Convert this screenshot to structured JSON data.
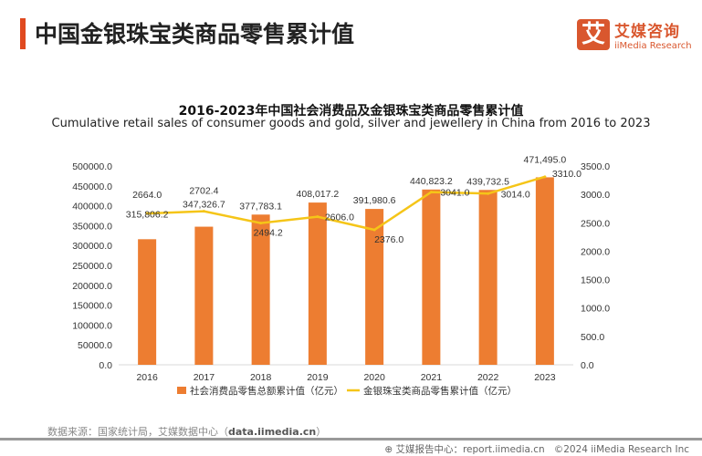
{
  "header": {
    "title": "中国金银珠宝类商品零售累计值",
    "logo_icon": "艾",
    "logo_cn": "艾媒咨询",
    "logo_en": "iiMedia Research"
  },
  "chart_data": {
    "type": "bar+line",
    "title": "2016-2023年中国社会消费品及金银珠宝类商品零售累计值",
    "subtitle": "Cumulative retail sales of consumer goods and gold, silver and jewellery in China from 2016 to 2023",
    "categories": [
      "2016",
      "2017",
      "2018",
      "2019",
      "2020",
      "2021",
      "2022",
      "2023"
    ],
    "series": [
      {
        "name": "社会消费品零售总额累计值（亿元）",
        "type": "bar",
        "axis": "left",
        "color": "#ed7d31",
        "values": [
          315806.2,
          347326.7,
          377783.1,
          408017.2,
          391980.6,
          440823.2,
          439732.5,
          471495.0
        ],
        "labels": [
          "315,806.2",
          "347,326.7",
          "377,783.1",
          "408,017.2",
          "391,980.6",
          "440,823.2",
          "439,732.5",
          "471,495.0"
        ]
      },
      {
        "name": "金银珠宝类商品零售累计值（亿元）",
        "type": "line",
        "axis": "right",
        "color": "#f5c518",
        "values": [
          2664.0,
          2702.4,
          2494.2,
          2606.0,
          2376.0,
          3041.0,
          3014.0,
          3310.0
        ],
        "labels": [
          "2664.0",
          "2702.4",
          "2494.2",
          "2606.0",
          "2376.0",
          "3041.0",
          "3014.0",
          "3310.0"
        ]
      }
    ],
    "y_left": {
      "range": [
        0,
        500000
      ],
      "ticks": [
        "0.0",
        "50000.0",
        "100000.0",
        "150000.0",
        "200000.0",
        "250000.0",
        "300000.0",
        "350000.0",
        "400000.0",
        "450000.0",
        "500000.0"
      ]
    },
    "y_right": {
      "range": [
        0,
        3500
      ],
      "ticks": [
        "0.0",
        "500.0",
        "1000.0",
        "1500.0",
        "2000.0",
        "2500.0",
        "3000.0",
        "3500.0"
      ]
    },
    "grid": false,
    "legend": "bottom"
  },
  "footer": {
    "source_prefix": "数据来源：国家统计局，艾媒数据中心（",
    "source_link": "data.iimedia.cn",
    "source_suffix": "）",
    "report": "艾媒报告中心：report.iimedia.cn",
    "copyright": "©2024  iiMedia Research  Inc"
  }
}
